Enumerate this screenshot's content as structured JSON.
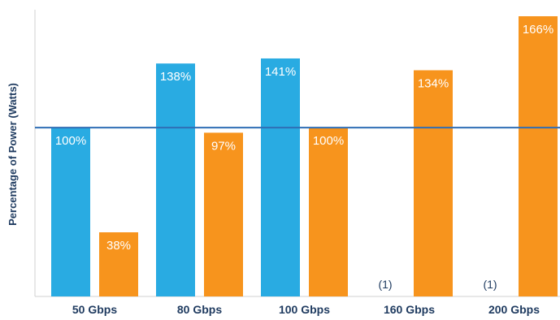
{
  "chart_data": {
    "type": "bar",
    "ylabel": "Percentage of Power (Watts)",
    "categories": [
      "50 Gbps",
      "80 Gbps",
      "100 Gbps",
      "160 Gbps",
      "200 Gbps"
    ],
    "ylim": [
      0,
      170
    ],
    "reference_line": 100,
    "grid": false,
    "legend": "none",
    "series": [
      {
        "color": "#29abe2",
        "values": [
          100,
          138,
          141,
          null,
          null
        ],
        "labels": [
          "100%",
          "138%",
          "141%",
          "(1)",
          "(1)"
        ]
      },
      {
        "color": "#f7941d",
        "values": [
          38,
          97,
          100,
          134,
          166
        ],
        "labels": [
          "38%",
          "97%",
          "100%",
          "134%",
          "166%"
        ]
      }
    ],
    "colors": {
      "reference_line": "#2f6eb5",
      "axis": "#d0d0d0",
      "text": "#1e3a5f"
    }
  }
}
